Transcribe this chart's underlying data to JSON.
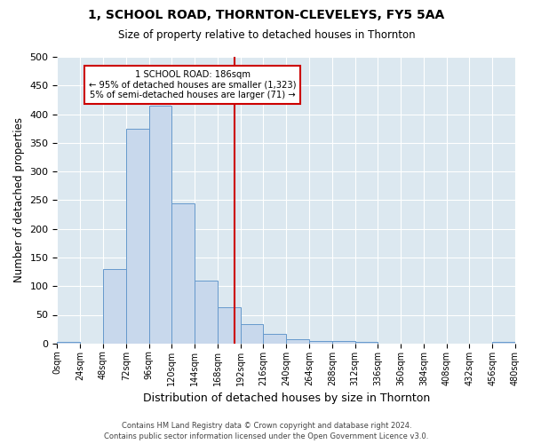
{
  "title": "1, SCHOOL ROAD, THORNTON-CLEVELEYS, FY5 5AA",
  "subtitle": "Size of property relative to detached houses in Thornton",
  "xlabel": "Distribution of detached houses by size in Thornton",
  "ylabel": "Number of detached properties",
  "footnote1": "Contains HM Land Registry data © Crown copyright and database right 2024.",
  "footnote2": "Contains public sector information licensed under the Open Government Licence v3.0.",
  "bin_edges": [
    0,
    24,
    48,
    72,
    96,
    120,
    144,
    168,
    192,
    216,
    240,
    264,
    288,
    312,
    336,
    360,
    384,
    408,
    432,
    456,
    480
  ],
  "bin_counts": [
    3,
    0,
    130,
    375,
    415,
    245,
    110,
    63,
    33,
    16,
    8,
    5,
    5,
    2,
    0,
    0,
    0,
    0,
    0,
    3
  ],
  "bar_color": "#c8d8ec",
  "bar_edge_color": "#6699cc",
  "vline_x": 186,
  "vline_color": "#cc0000",
  "annotation_text": "1 SCHOOL ROAD: 186sqm\n← 95% of detached houses are smaller (1,323)\n5% of semi-detached houses are larger (71) →",
  "annotation_box_facecolor": "#ffffff",
  "annotation_box_edgecolor": "#cc0000",
  "ylim": [
    0,
    500
  ],
  "fig_bg_color": "#ffffff",
  "plot_bg_color": "#dce8f0",
  "grid_color": "#ffffff",
  "tick_labels": [
    "0sqm",
    "24sqm",
    "48sqm",
    "72sqm",
    "96sqm",
    "120sqm",
    "144sqm",
    "168sqm",
    "192sqm",
    "216sqm",
    "240sqm",
    "264sqm",
    "288sqm",
    "312sqm",
    "336sqm",
    "360sqm",
    "384sqm",
    "408sqm",
    "432sqm",
    "456sqm",
    "480sqm"
  ],
  "yticks": [
    0,
    50,
    100,
    150,
    200,
    250,
    300,
    350,
    400,
    450,
    500
  ]
}
